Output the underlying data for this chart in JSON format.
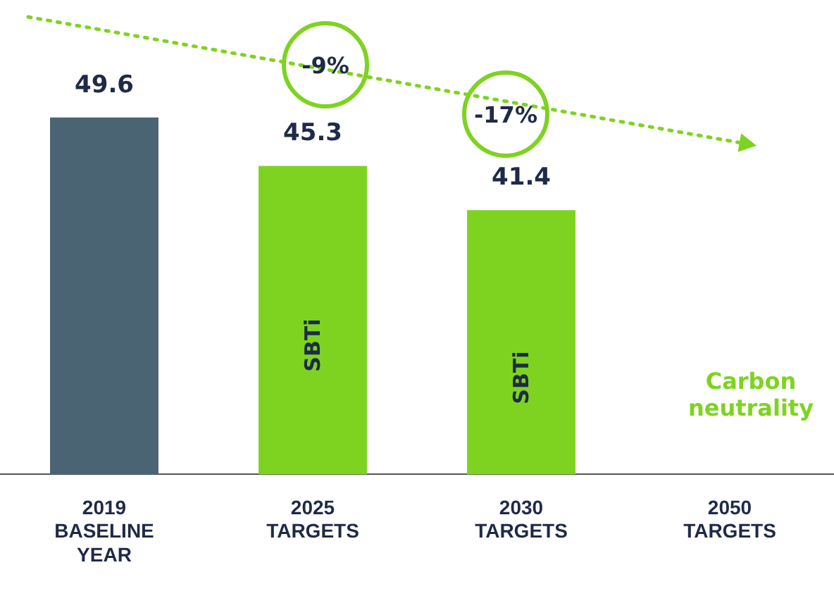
{
  "chart_data": {
    "type": "bar",
    "categories": [
      "2019\nBASELINE\nYEAR",
      "2025\nTARGETS",
      "2030\nTARGETS",
      "2050\nTARGETS"
    ],
    "values": [
      49.6,
      45.3,
      41.4,
      null
    ],
    "colors": [
      "#4b6474",
      "#7ed321",
      "#7ed321",
      "#7ed321"
    ],
    "ylim": [
      18,
      60
    ],
    "data_labels": true,
    "legend": false,
    "annotations": [
      "-9%",
      "-17%",
      "SBTi",
      "SBTi",
      "Carbon neutrality"
    ]
  }
}
